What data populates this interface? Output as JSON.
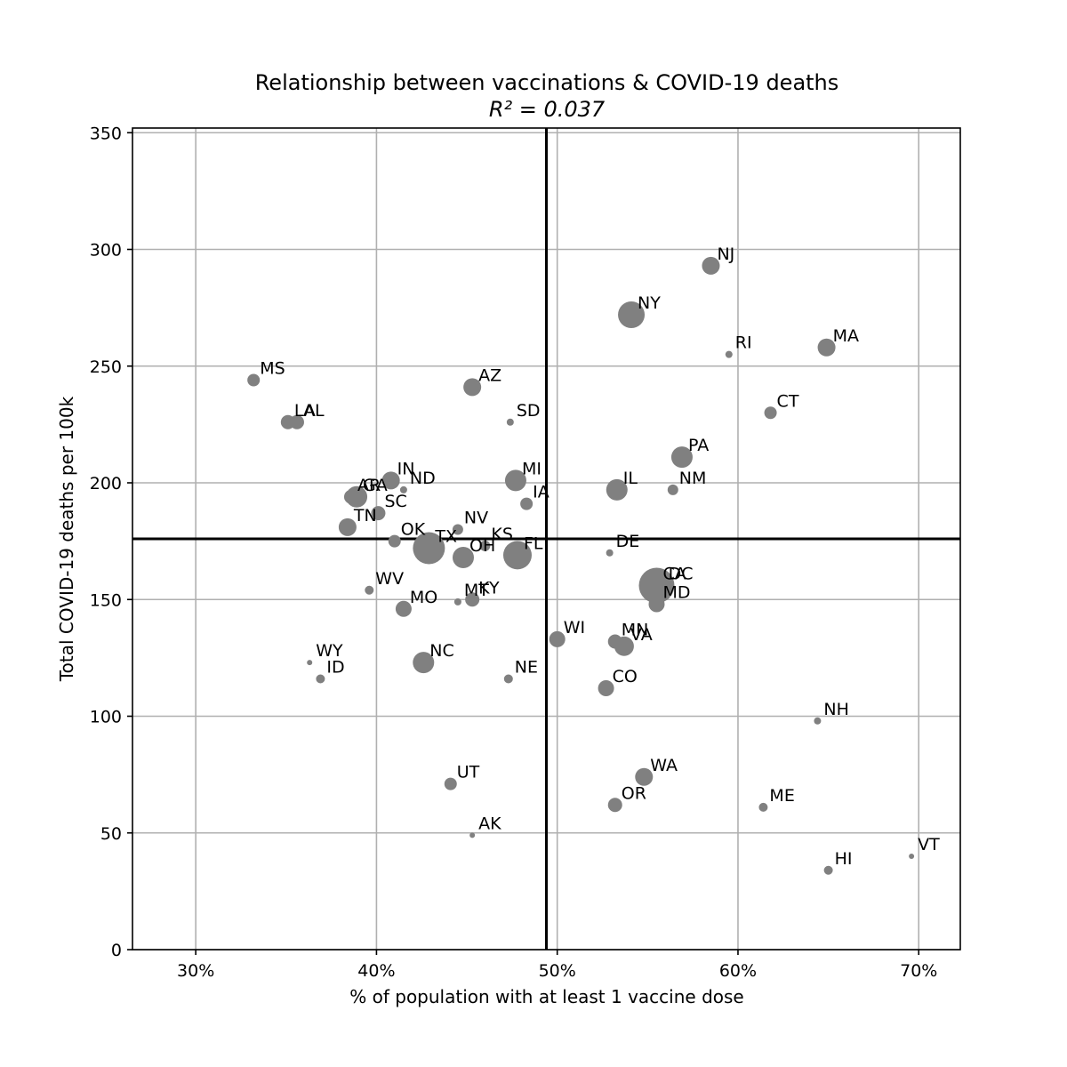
{
  "chart_data": {
    "type": "scatter",
    "title": "Relationship between vaccinations & COVID-19 deaths",
    "subtitle": "R² = 0.037",
    "xlabel": "% of population with at least 1 vaccine dose",
    "ylabel": "Total COVID-19 deaths per 100k",
    "xlim": [
      26.5,
      72.3
    ],
    "ylim": [
      0,
      352
    ],
    "x_ticks": [
      30,
      40,
      50,
      60,
      70
    ],
    "x_tick_labels": [
      "30%",
      "40%",
      "50%",
      "60%",
      "70%"
    ],
    "y_ticks": [
      0,
      50,
      100,
      150,
      200,
      250,
      300,
      350
    ],
    "y_tick_labels": [
      "0",
      "50",
      "100",
      "150",
      "200",
      "250",
      "300",
      "350"
    ],
    "grid": true,
    "reference_lines": {
      "vertical_x": 49.4,
      "horizontal_y": 176
    },
    "point_color": "#808080",
    "points": [
      {
        "label": "MS",
        "x": 33.2,
        "y": 244,
        "size": 7
      },
      {
        "label": "LA",
        "x": 35.1,
        "y": 226,
        "size": 8
      },
      {
        "label": "AL",
        "x": 35.6,
        "y": 226,
        "size": 8
      },
      {
        "label": "AZ",
        "x": 45.3,
        "y": 241,
        "size": 10
      },
      {
        "label": "SD",
        "x": 47.4,
        "y": 226,
        "size": 4
      },
      {
        "label": "NJ",
        "x": 58.5,
        "y": 293,
        "size": 10
      },
      {
        "label": "NY",
        "x": 54.1,
        "y": 272,
        "size": 15
      },
      {
        "label": "RI",
        "x": 59.5,
        "y": 255,
        "size": 4
      },
      {
        "label": "MA",
        "x": 64.9,
        "y": 258,
        "size": 10
      },
      {
        "label": "CT",
        "x": 61.8,
        "y": 230,
        "size": 7
      },
      {
        "label": "PA",
        "x": 56.9,
        "y": 211,
        "size": 12
      },
      {
        "label": "IN",
        "x": 40.8,
        "y": 201,
        "size": 10
      },
      {
        "label": "ND",
        "x": 41.5,
        "y": 197,
        "size": 4
      },
      {
        "label": "GA",
        "x": 38.9,
        "y": 194,
        "size": 12
      },
      {
        "label": "AR",
        "x": 38.6,
        "y": 194,
        "size": 8
      },
      {
        "label": "SC",
        "x": 40.1,
        "y": 187,
        "size": 8
      },
      {
        "label": "TN",
        "x": 38.4,
        "y": 181,
        "size": 10
      },
      {
        "label": "MI",
        "x": 47.7,
        "y": 201,
        "size": 12
      },
      {
        "label": "IA",
        "x": 48.3,
        "y": 191,
        "size": 7
      },
      {
        "label": "IL",
        "x": 53.3,
        "y": 197,
        "size": 12
      },
      {
        "label": "NM",
        "x": 56.4,
        "y": 197,
        "size": 6
      },
      {
        "label": "OK",
        "x": 41.0,
        "y": 175,
        "size": 7
      },
      {
        "label": "NV",
        "x": 44.5,
        "y": 180,
        "size": 6
      },
      {
        "label": "TX",
        "x": 42.9,
        "y": 172,
        "size": 18
      },
      {
        "label": "KS",
        "x": 46.0,
        "y": 173,
        "size": 6
      },
      {
        "label": "OH",
        "x": 44.8,
        "y": 168,
        "size": 12
      },
      {
        "label": "FL",
        "x": 47.8,
        "y": 169,
        "size": 16
      },
      {
        "label": "DE",
        "x": 52.9,
        "y": 170,
        "size": 4
      },
      {
        "label": "CA",
        "x": 55.5,
        "y": 156,
        "size": 20
      },
      {
        "label": "DC",
        "x": 55.8,
        "y": 156,
        "size": 4
      },
      {
        "label": "MD",
        "x": 55.5,
        "y": 148,
        "size": 9
      },
      {
        "label": "WV",
        "x": 39.6,
        "y": 154,
        "size": 5
      },
      {
        "label": "MO",
        "x": 41.5,
        "y": 146,
        "size": 9
      },
      {
        "label": "MT",
        "x": 44.5,
        "y": 149,
        "size": 4
      },
      {
        "label": "KY",
        "x": 45.3,
        "y": 150,
        "size": 8
      },
      {
        "label": "WI",
        "x": 50.0,
        "y": 133,
        "size": 9
      },
      {
        "label": "MN",
        "x": 53.2,
        "y": 132,
        "size": 8
      },
      {
        "label": "VA",
        "x": 53.7,
        "y": 130,
        "size": 11
      },
      {
        "label": "WY",
        "x": 36.3,
        "y": 123,
        "size": 3
      },
      {
        "label": "ID",
        "x": 36.9,
        "y": 116,
        "size": 5
      },
      {
        "label": "NC",
        "x": 42.6,
        "y": 123,
        "size": 12
      },
      {
        "label": "NE",
        "x": 47.3,
        "y": 116,
        "size": 5
      },
      {
        "label": "CO",
        "x": 52.7,
        "y": 112,
        "size": 9
      },
      {
        "label": "NH",
        "x": 64.4,
        "y": 98,
        "size": 4
      },
      {
        "label": "UT",
        "x": 44.1,
        "y": 71,
        "size": 7
      },
      {
        "label": "WA",
        "x": 54.8,
        "y": 74,
        "size": 10
      },
      {
        "label": "OR",
        "x": 53.2,
        "y": 62,
        "size": 8
      },
      {
        "label": "ME",
        "x": 61.4,
        "y": 61,
        "size": 5
      },
      {
        "label": "AK",
        "x": 45.3,
        "y": 49,
        "size": 3
      },
      {
        "label": "HI",
        "x": 65.0,
        "y": 34,
        "size": 5
      },
      {
        "label": "VT",
        "x": 69.6,
        "y": 40,
        "size": 3
      }
    ]
  }
}
